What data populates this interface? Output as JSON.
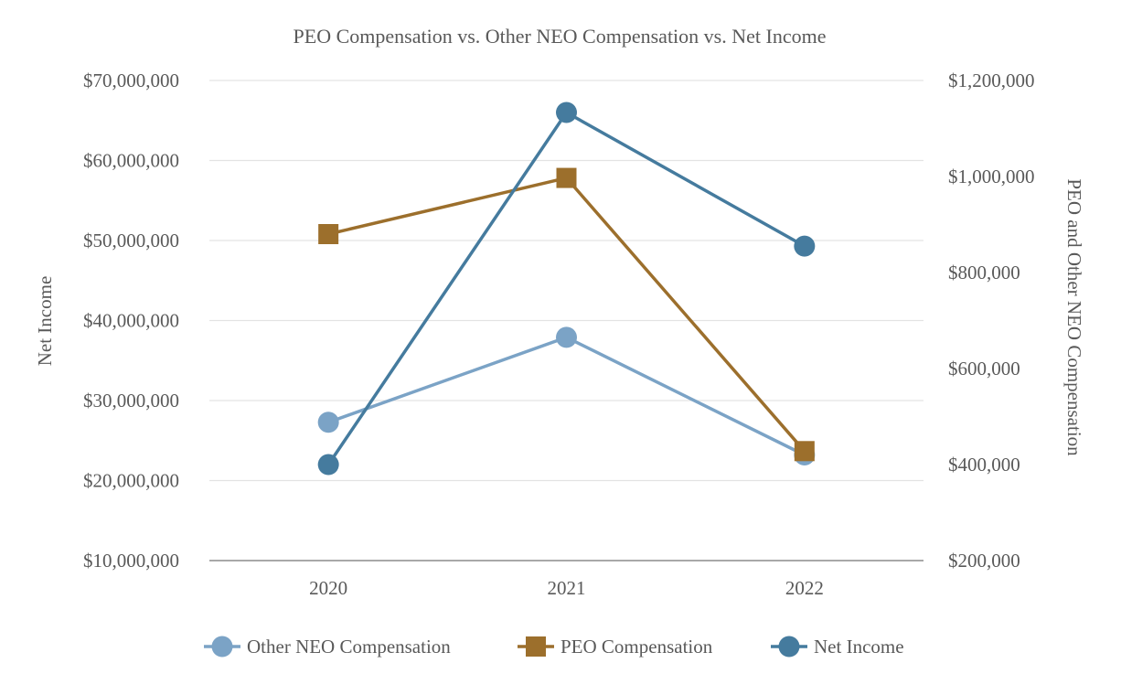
{
  "colors": {
    "other_neo": "#7BA3C6",
    "peo": "#9C6F2C",
    "net_income": "#457B9E",
    "grid": "#e3e3e3",
    "axis": "#8c8c8c",
    "text": "#595959"
  },
  "chart_data": {
    "type": "line",
    "title": "PEO Compensation vs. Other NEO Compensation vs. Net Income",
    "categories": [
      "2020",
      "2021",
      "2022"
    ],
    "y_left": {
      "label": "Net Income",
      "ylim": [
        10000000,
        70000000
      ],
      "ticks": [
        10000000,
        20000000,
        30000000,
        40000000,
        50000000,
        60000000,
        70000000
      ],
      "tick_labels": [
        "$10,000,000",
        "$20,000,000",
        "$30,000,000",
        "$40,000,000",
        "$50,000,000",
        "$60,000,000",
        "$70,000,000"
      ]
    },
    "y_right": {
      "label": "PEO and Other NEO Compensation",
      "ylim": [
        200000,
        1200000
      ],
      "ticks": [
        200000,
        400000,
        600000,
        800000,
        1000000,
        1200000
      ],
      "tick_labels": [
        "$200,000",
        "$400,000",
        "$600,000",
        "$800,000",
        "$1,000,000",
        "$1,200,000"
      ]
    },
    "series": [
      {
        "name": "Other NEO Compensation",
        "axis": "right",
        "marker": "circle",
        "color_key": "other_neo",
        "values": [
          488000,
          665000,
          420000
        ]
      },
      {
        "name": "PEO Compensation",
        "axis": "right",
        "marker": "square",
        "color_key": "peo",
        "values": [
          880000,
          997000,
          428000
        ]
      },
      {
        "name": "Net Income",
        "axis": "left",
        "marker": "circle",
        "color_key": "net_income",
        "values": [
          22000000,
          66000000,
          49300000
        ]
      }
    ],
    "grid": true,
    "legend_position": "bottom"
  }
}
